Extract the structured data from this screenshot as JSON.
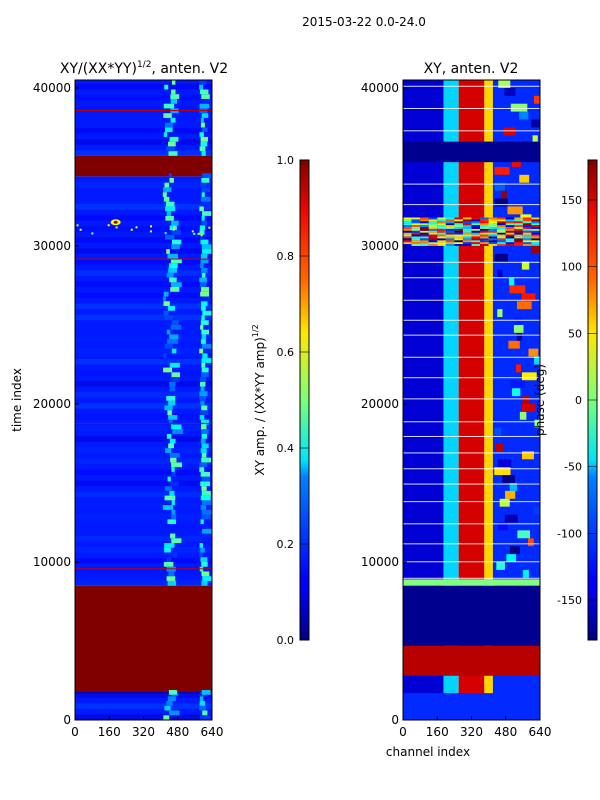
{
  "figure": {
    "suptitle": "2015-03-22 0.0-24.0"
  },
  "chart_data": [
    {
      "type": "heatmap",
      "title": "XY/(XX*YY)",
      "title_exponent": "1/2",
      "title_suffix": ", anten. V2",
      "xlabel": "",
      "ylabel": "time index",
      "xlim": [
        0,
        640
      ],
      "ylim": [
        0,
        40500
      ],
      "x_ticks": [
        0,
        160,
        320,
        480,
        640
      ],
      "y_ticks": [
        0,
        10000,
        20000,
        30000,
        40000
      ],
      "y_tick_labels": [
        "0",
        "10000",
        "20000",
        "30000",
        "40000"
      ],
      "colormap": "jet",
      "bands": [
        {
          "from": 0,
          "to": 1600,
          "level": 0.15
        },
        {
          "from": 1600,
          "to": 1800,
          "level": 0.02
        },
        {
          "from": 1800,
          "to": 8500,
          "level": 1.0
        },
        {
          "from": 8500,
          "to": 34400,
          "level": 0.15
        },
        {
          "from": 34400,
          "to": 35700,
          "level": 1.0
        },
        {
          "from": 35700,
          "to": 40500,
          "level": 0.15
        }
      ],
      "red_lines": [
        9600,
        18800,
        29200,
        38600
      ],
      "hot_columns": [
        {
          "from": 410,
          "to": 500
        },
        {
          "from": 580,
          "to": 610
        }
      ],
      "spike": {
        "time": 31500,
        "channel": 190
      },
      "colorbar": {
        "label": "XY amp. / (XX*YY amp)",
        "label_exponent": "1/2",
        "min": 0.0,
        "max": 1.0,
        "ticks": [
          "0.0",
          "0.2",
          "0.4",
          "0.6",
          "0.8",
          "1.0"
        ],
        "tick_values": [
          0.0,
          0.2,
          0.4,
          0.6,
          0.8,
          1.0
        ]
      }
    },
    {
      "type": "heatmap",
      "title": "XY, anten. V2",
      "xlabel": "channel index",
      "ylabel": "",
      "xlim": [
        0,
        640
      ],
      "ylim": [
        0,
        40500
      ],
      "x_ticks": [
        0,
        160,
        320,
        480,
        640
      ],
      "y_ticks": [
        0,
        10000,
        20000,
        30000,
        40000
      ],
      "y_tick_labels": [
        "0",
        "10000",
        "20000",
        "30000",
        "40000"
      ],
      "colormap": "jet",
      "phase_profile": [
        {
          "from": 0,
          "to": 190,
          "phase": -150
        },
        {
          "from": 190,
          "to": 260,
          "phase": -60
        },
        {
          "from": 260,
          "to": 380,
          "phase": 150
        },
        {
          "from": 380,
          "to": 420,
          "phase": 60
        },
        {
          "from": 420,
          "to": 640,
          "phase": -120
        }
      ],
      "flat_bands": [
        {
          "from": 0,
          "to": 1700,
          "phase": -120
        },
        {
          "from": 2800,
          "to": 4700,
          "phase": 160
        },
        {
          "from": 4700,
          "to": 8500,
          "phase": -175
        },
        {
          "from": 8500,
          "to": 8900,
          "phase": 0
        },
        {
          "from": 35300,
          "to": 36600,
          "phase": -175
        }
      ],
      "noisy_band": {
        "from": 30000,
        "to": 31800
      },
      "colorbar": {
        "label": "phase (deg)",
        "min": -180,
        "max": 180,
        "ticks": [
          "-150",
          "-100",
          "-50",
          "0",
          "50",
          "100",
          "150"
        ],
        "tick_values": [
          -150,
          -100,
          -50,
          0,
          50,
          100,
          150
        ]
      }
    }
  ]
}
